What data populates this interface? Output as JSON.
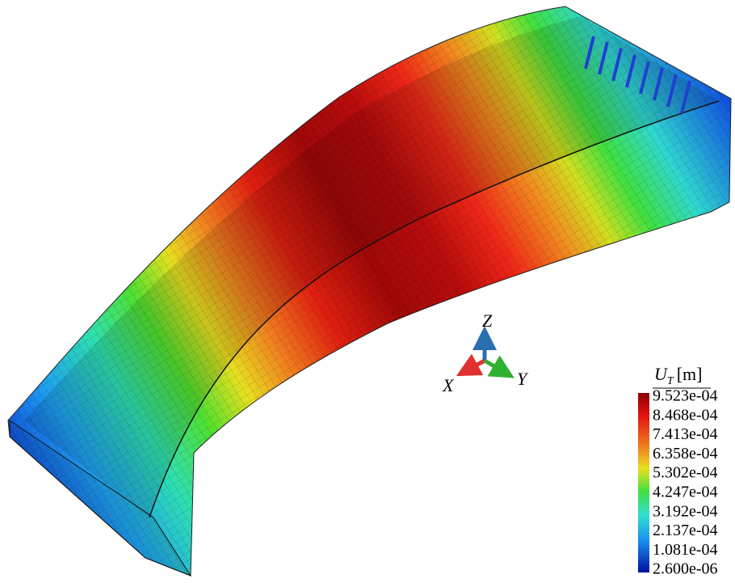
{
  "legend": {
    "title": {
      "symbol": "U",
      "subscript": "T",
      "unit": "[m]"
    },
    "labels": [
      "9.523e-04",
      "8.468e-04",
      "7.413e-04",
      "6.358e-04",
      "5.302e-04",
      "4.247e-04",
      "3.192e-04",
      "2.137e-04",
      "1.081e-04",
      "2.600e-06"
    ]
  },
  "axes": {
    "x": "X",
    "y": "Y",
    "z": "Z"
  }
}
